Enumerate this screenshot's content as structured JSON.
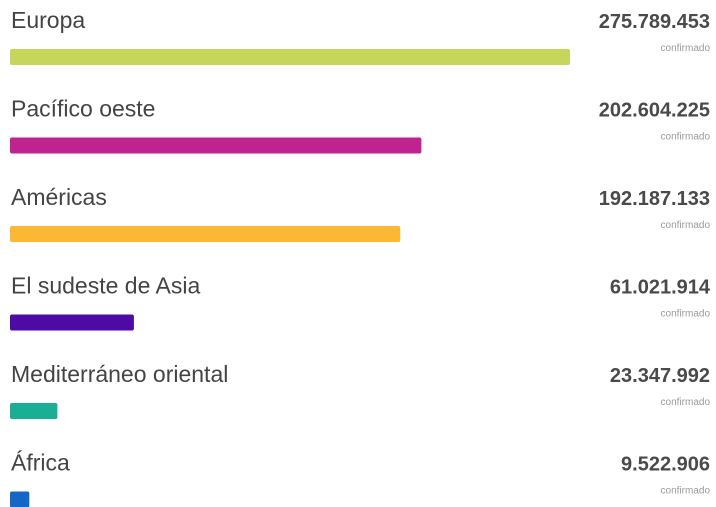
{
  "chart_data": {
    "type": "bar",
    "orientation": "horizontal",
    "categories": [
      "Europa",
      "Pacífico oeste",
      "Américas",
      "El sudeste de Asia",
      "Mediterráneo oriental",
      "África"
    ],
    "values": [
      275789453,
      202604225,
      192187133,
      61021914,
      23347992,
      9522906
    ],
    "value_labels": [
      "275.789.453",
      "202.604.225",
      "192.187.133",
      "61.021.914",
      "23.347.992",
      "9.522.906"
    ],
    "unit_label": "confirmado",
    "colors": [
      "#c6d65b",
      "#c02290",
      "#fcb834",
      "#4e0aa4",
      "#1aae95",
      "#1466c7"
    ]
  }
}
